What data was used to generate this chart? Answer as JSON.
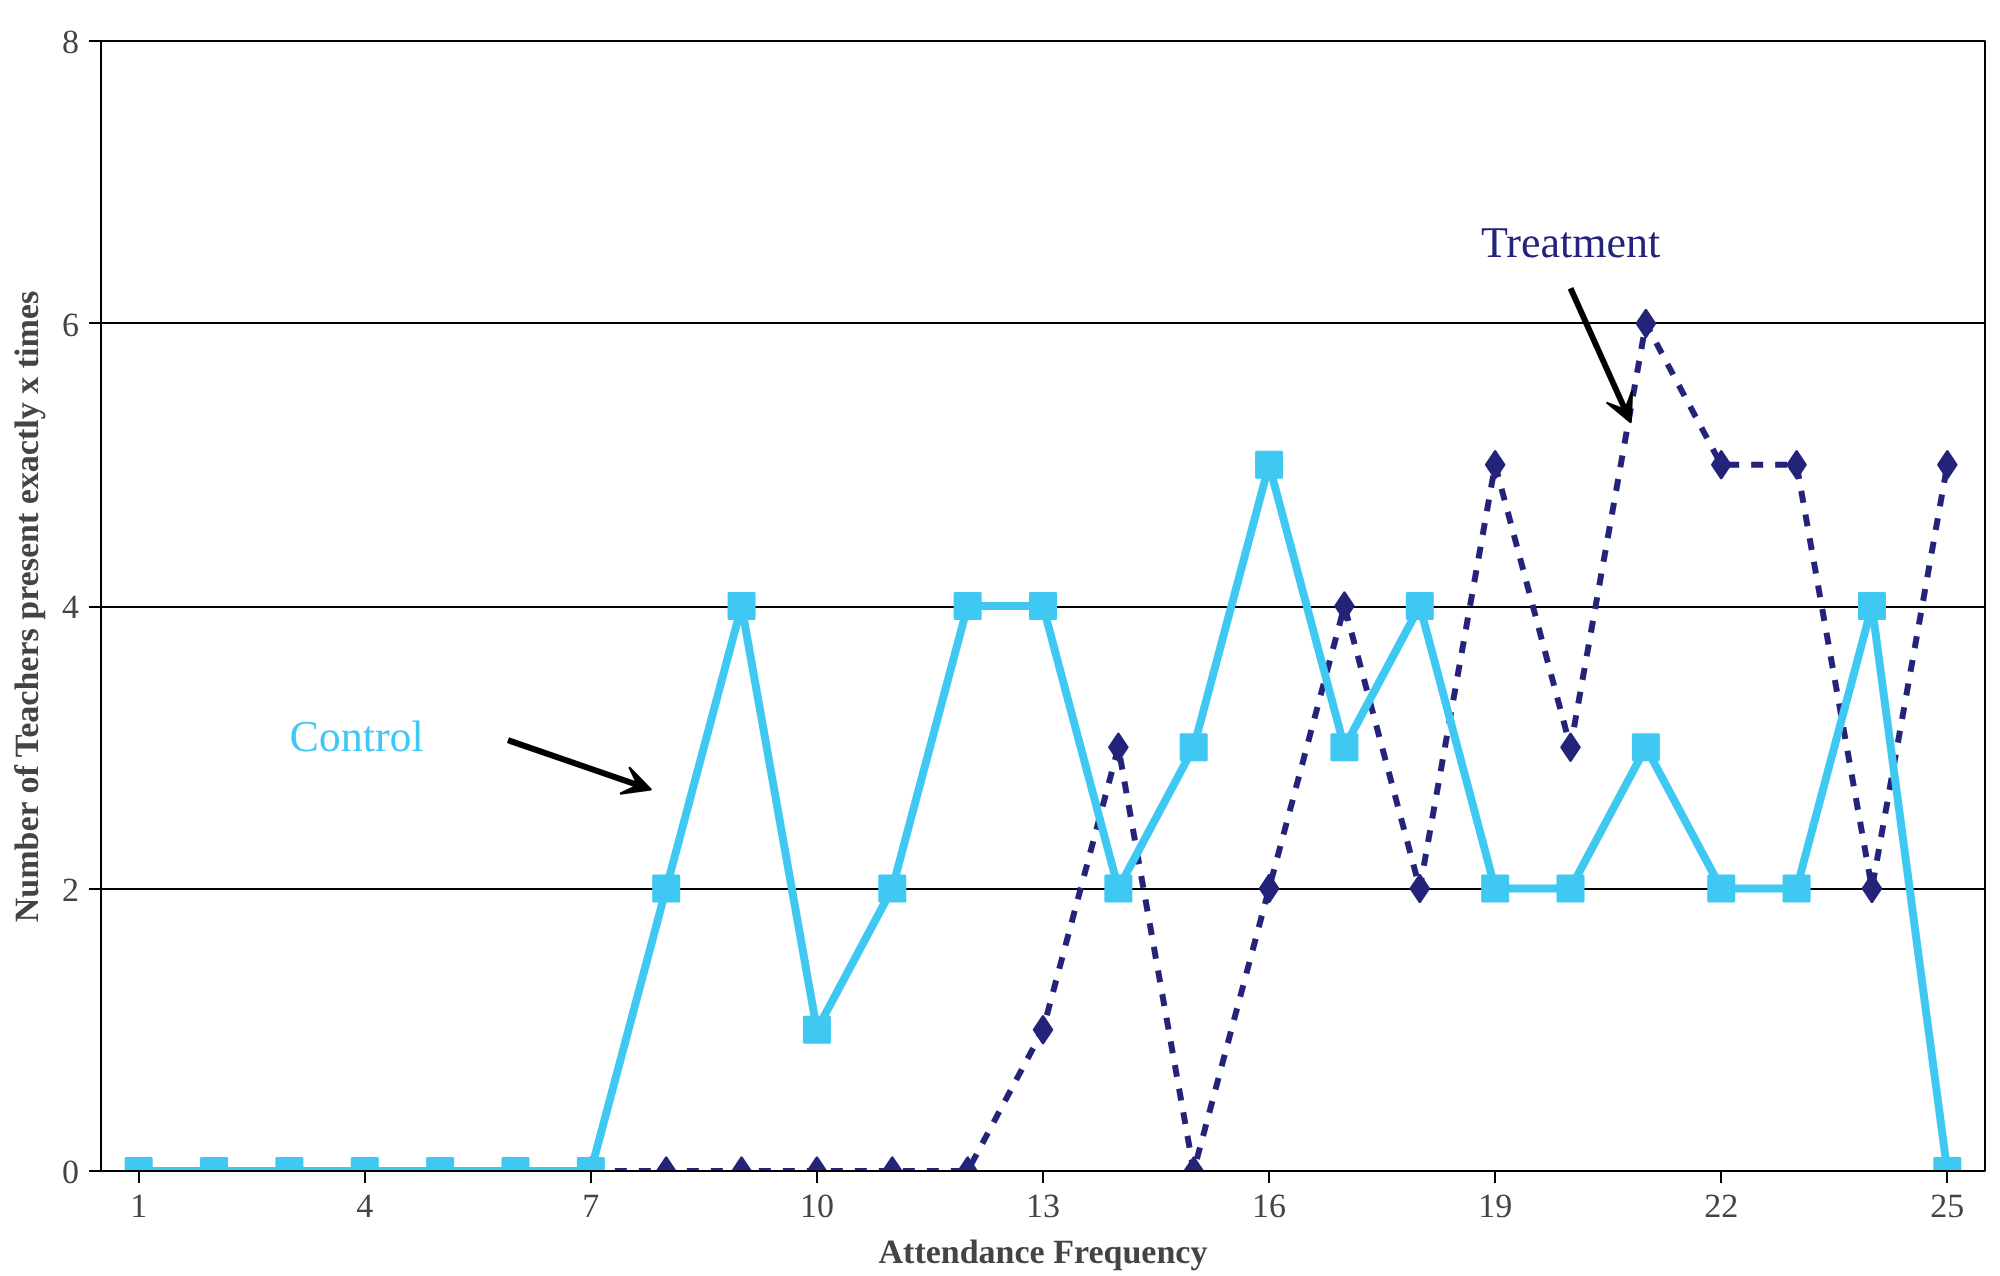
{
  "chart_data": {
    "type": "line",
    "xlabel": "Attendance Frequency",
    "ylabel": "Number of Teachers present exactly x times",
    "x": [
      1,
      2,
      3,
      4,
      5,
      6,
      7,
      8,
      9,
      10,
      11,
      12,
      13,
      14,
      15,
      16,
      17,
      18,
      19,
      20,
      21,
      22,
      23,
      24,
      25
    ],
    "xlim": [
      0.5,
      25.5
    ],
    "xticks": [
      1,
      4,
      7,
      10,
      13,
      16,
      19,
      22,
      25
    ],
    "ylim": [
      0,
      8
    ],
    "yticks": [
      0,
      2,
      4,
      6,
      8
    ],
    "grid": "y",
    "legend": false,
    "series": [
      {
        "name": "Treatment",
        "color": "#23237a",
        "marker": "diamond",
        "line_style": "dashed",
        "x": [
          7,
          8,
          9,
          10,
          11,
          12,
          13,
          14,
          15,
          16,
          17,
          18,
          19,
          20,
          21,
          22,
          23,
          24,
          25
        ],
        "values": [
          0,
          0,
          0,
          0,
          0,
          0,
          1,
          3,
          0,
          2,
          4,
          2,
          5,
          3,
          6,
          5,
          5,
          2,
          5
        ]
      },
      {
        "name": "Control",
        "color": "#3ec8f2",
        "marker": "square",
        "line_style": "solid",
        "values": [
          0,
          0,
          0,
          0,
          0,
          0,
          0,
          2,
          4,
          1,
          2,
          4,
          4,
          2,
          3,
          5,
          3,
          4,
          2,
          2,
          3,
          2,
          2,
          4,
          0
        ]
      }
    ]
  }
}
